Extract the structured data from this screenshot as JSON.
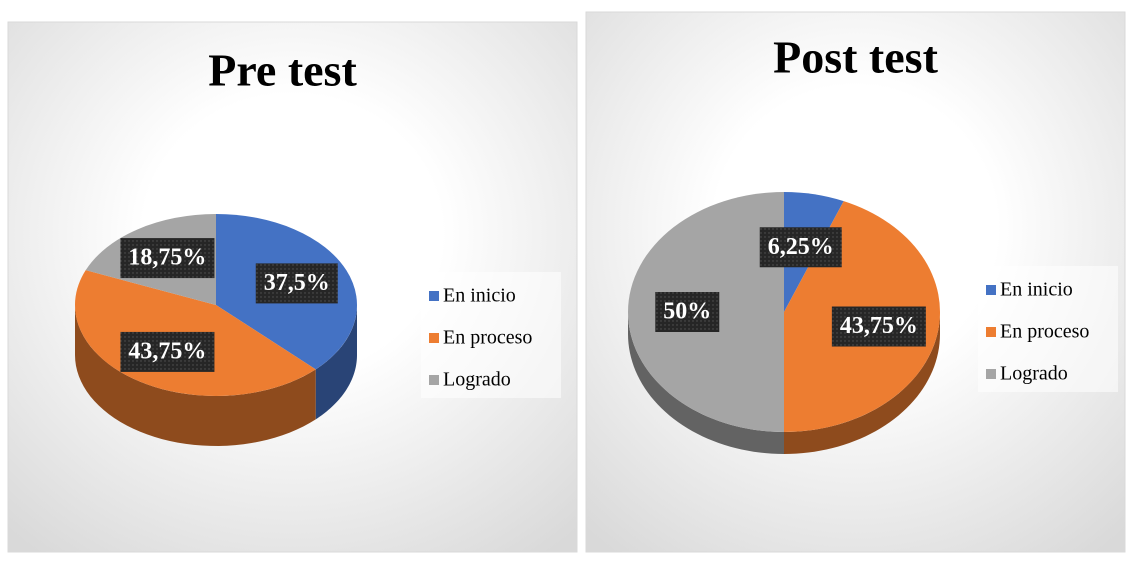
{
  "chart_data": [
    {
      "type": "pie",
      "title": "Pre test",
      "categories": [
        "En inicio",
        "En proceso",
        "Logrado"
      ],
      "values": [
        37.5,
        43.75,
        18.75
      ],
      "value_labels": [
        "37,5%",
        "43,75%",
        "18,75%"
      ],
      "colors": [
        "#4472c4",
        "#ed7d31",
        "#a5a5a5"
      ],
      "legend": "right"
    },
    {
      "type": "pie",
      "title": "Post test",
      "categories": [
        "En inicio",
        "En proceso",
        "Logrado"
      ],
      "values": [
        6.25,
        43.75,
        50
      ],
      "value_labels": [
        "6,25%",
        "43,75%",
        "50%"
      ],
      "colors": [
        "#4472c4",
        "#ed7d31",
        "#a5a5a5"
      ],
      "legend": "right"
    }
  ]
}
